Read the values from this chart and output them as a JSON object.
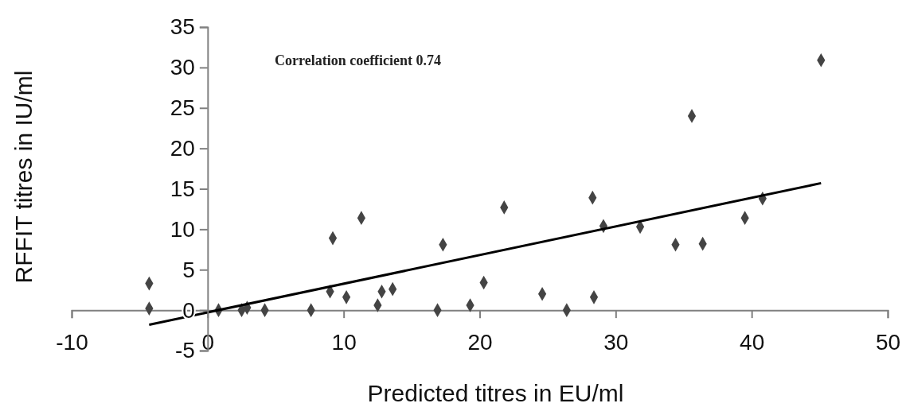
{
  "chart_data": {
    "type": "scatter",
    "xlabel": "Predicted titres in EU/ml",
    "ylabel": "RFFIT titres in IU/ml",
    "annotations": [
      "Correlation coefficient 0.74"
    ],
    "xlim": [
      -10,
      50
    ],
    "xticks": [
      -10,
      0,
      10,
      20,
      30,
      40,
      50
    ],
    "ylim": [
      -5,
      35
    ],
    "yticks": [
      -5,
      0,
      5,
      10,
      15,
      20,
      25,
      30,
      35
    ],
    "grid": false,
    "series": [
      {
        "color": "#444444",
        "marker": "diamond",
        "x": [
          -4.3,
          -4.3,
          0.8,
          2.5,
          2.9,
          4.2,
          7.6,
          9.0,
          9.2,
          10.2,
          11.3,
          12.5,
          12.8,
          13.6,
          16.9,
          17.3,
          19.3,
          20.3,
          21.8,
          24.6,
          26.4,
          28.3,
          28.4,
          29.1,
          31.8,
          34.4,
          35.6,
          36.4,
          39.5,
          40.8,
          45.1
        ],
        "values": [
          3.3,
          0.2,
          0,
          0,
          0.3,
          0,
          0,
          2.3,
          8.9,
          1.6,
          11.4,
          0.6,
          2.3,
          2.6,
          0,
          8.1,
          0.6,
          3.4,
          12.7,
          2.0,
          0,
          13.9,
          1.6,
          10.4,
          10.3,
          8.1,
          24.0,
          8.2,
          11.4,
          13.8,
          30.9
        ]
      },
      {
        "type": "line",
        "color": "#000000",
        "marker": "none",
        "line_style": "solid",
        "x": [
          -4.3,
          45.1
        ],
        "values": [
          -1.8,
          15.7
        ]
      }
    ]
  }
}
